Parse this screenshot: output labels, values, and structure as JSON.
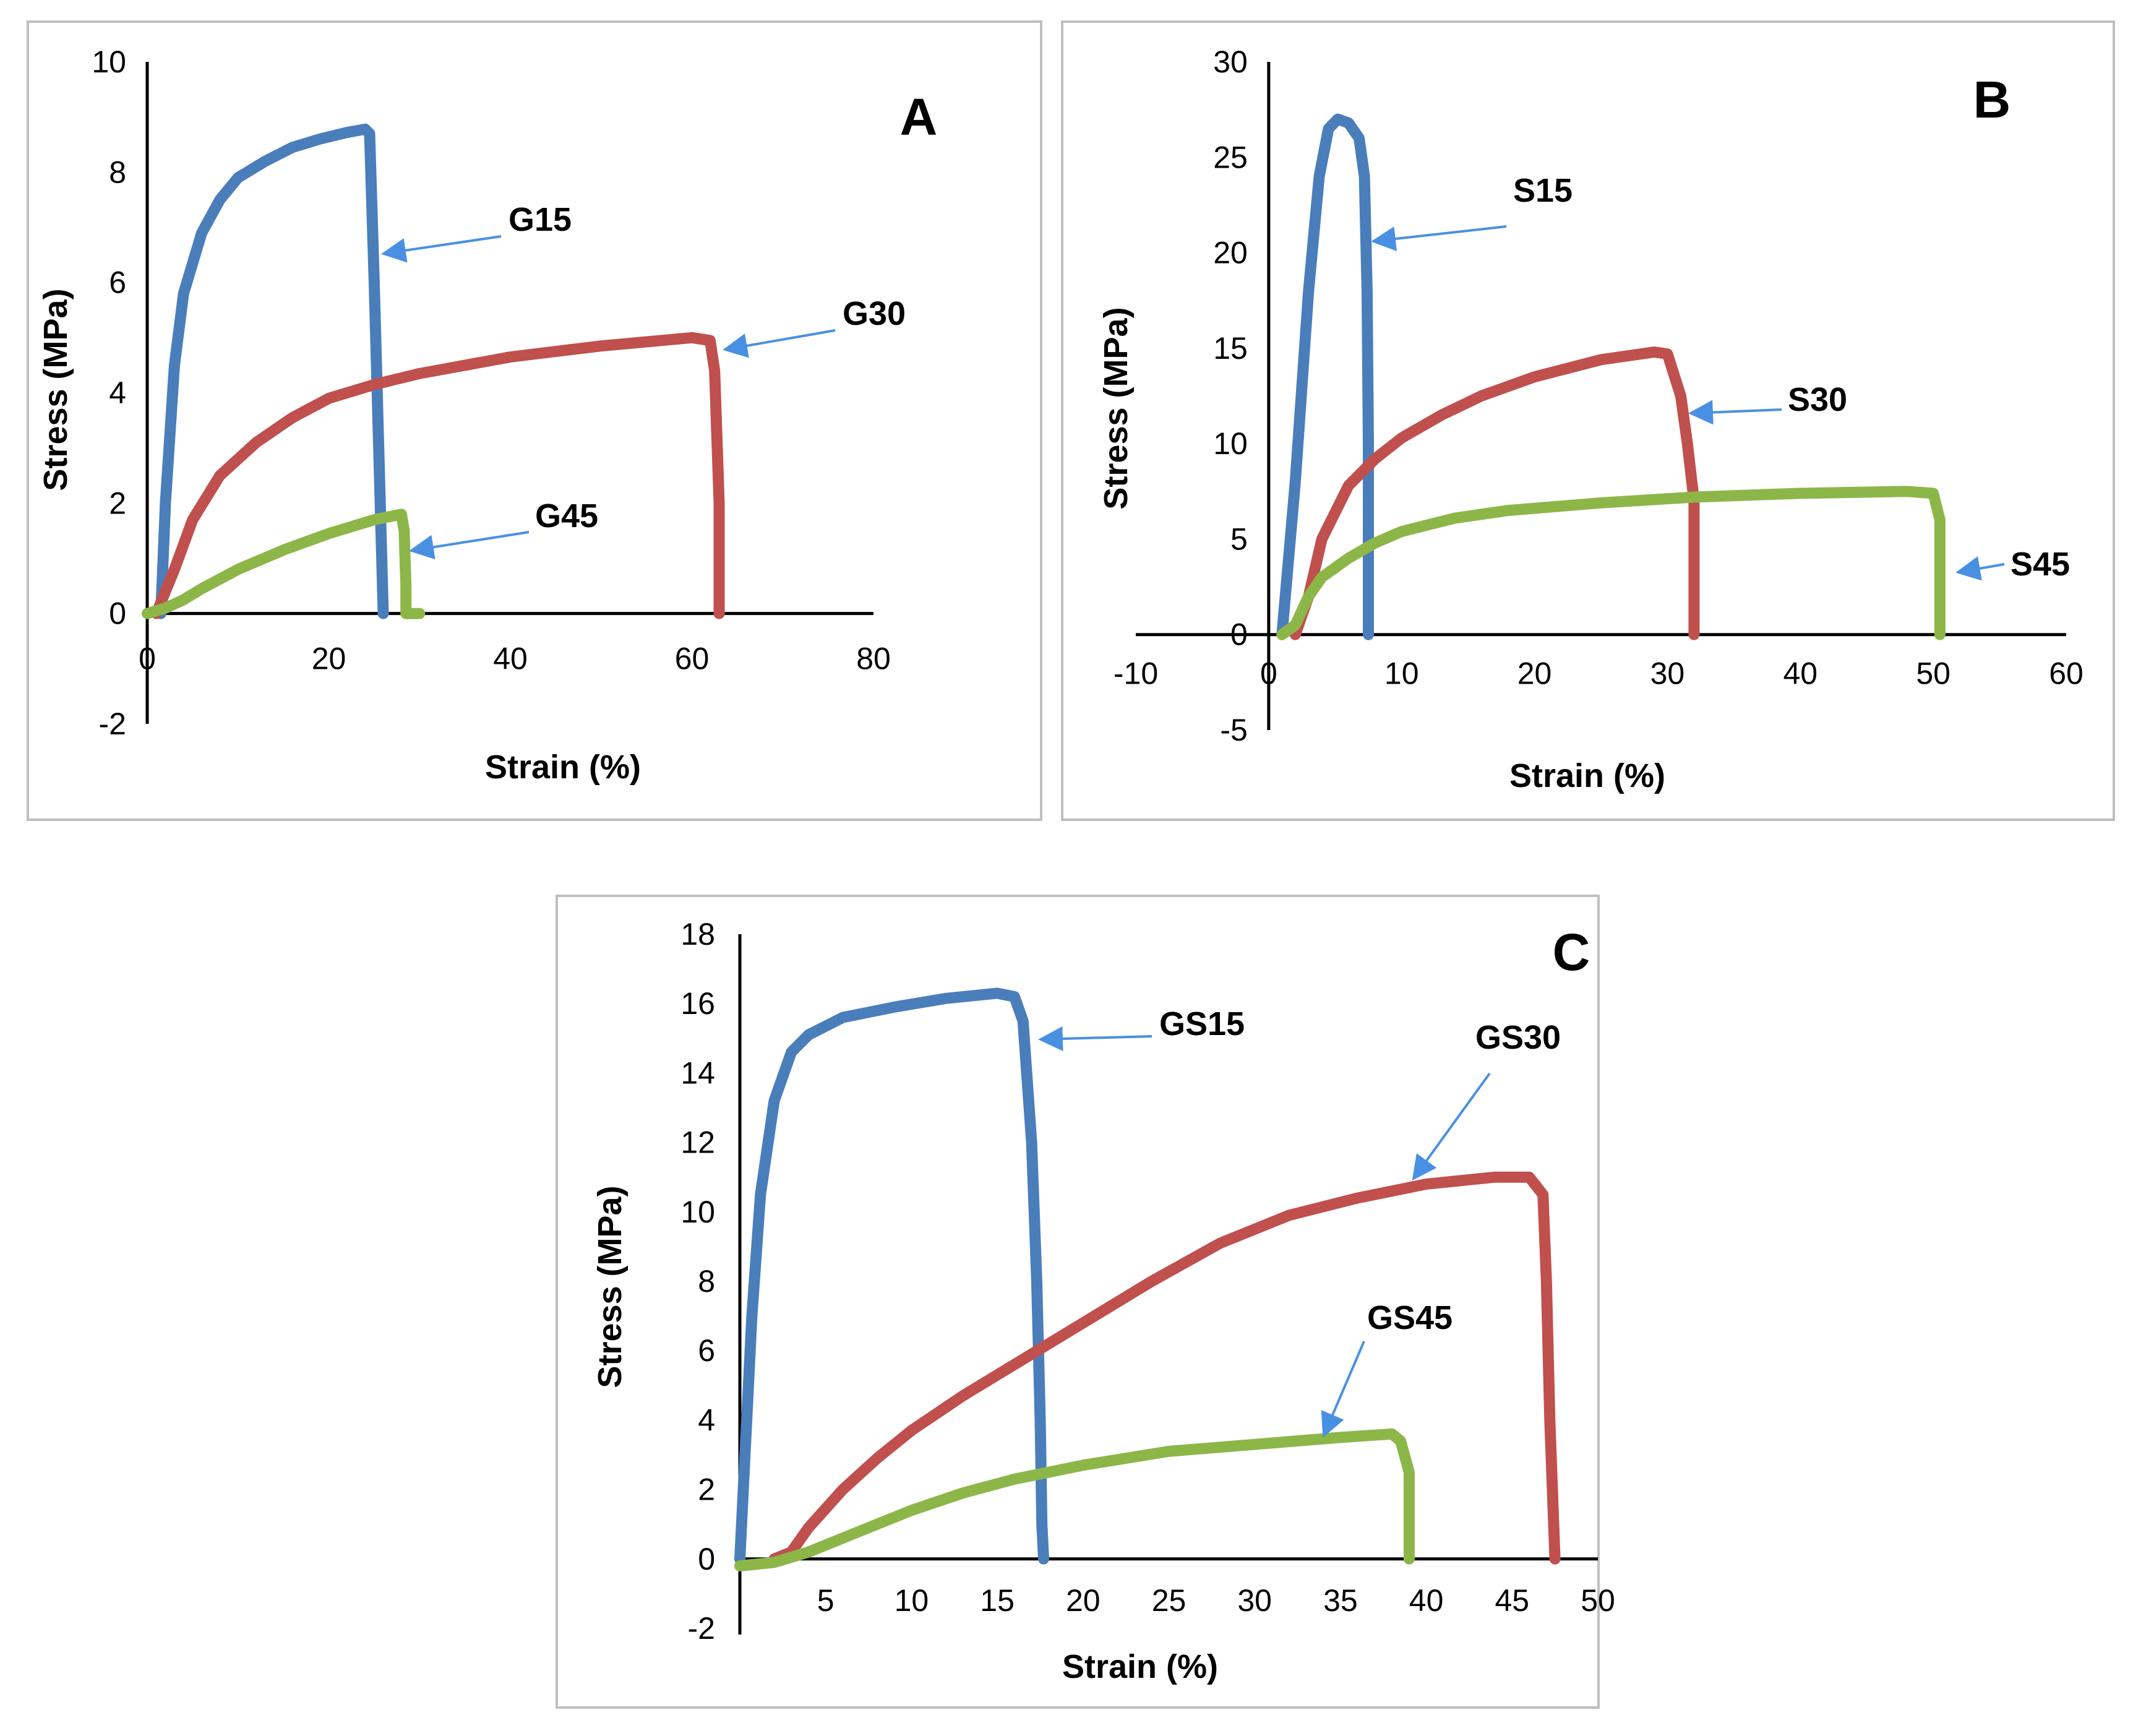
{
  "colors": {
    "blue": "#4a7ebb",
    "red": "#c0504d",
    "green": "#8db649",
    "arrow": "#4a90e2",
    "frame": "#bfbfbf"
  },
  "chart_data": [
    {
      "type": "line",
      "panel": "A",
      "xlabel": "Strain (%)",
      "ylabel": "Stress (MPa)",
      "xlim": [
        0,
        80
      ],
      "ylim": [
        -2,
        10
      ],
      "xticks": [
        0,
        20,
        40,
        60,
        80
      ],
      "yticks": [
        -2,
        0,
        2,
        4,
        6,
        8,
        10
      ],
      "series": [
        {
          "name": "G15",
          "color": "blue",
          "x": [
            1.5,
            2,
            3,
            4,
            6,
            8,
            10,
            13,
            16,
            19,
            22,
            24,
            24.5,
            25,
            25.5,
            26
          ],
          "y": [
            0,
            2,
            4.5,
            5.8,
            6.9,
            7.5,
            7.9,
            8.2,
            8.45,
            8.6,
            8.72,
            8.78,
            8.7,
            6,
            3,
            0
          ]
        },
        {
          "name": "G30",
          "color": "red",
          "x": [
            1,
            3,
            5,
            8,
            12,
            16,
            20,
            25,
            30,
            40,
            50,
            60,
            62,
            62.5,
            63,
            63
          ],
          "y": [
            0,
            0.8,
            1.7,
            2.5,
            3.1,
            3.55,
            3.9,
            4.15,
            4.35,
            4.65,
            4.85,
            5.0,
            4.95,
            4.4,
            2.0,
            0
          ]
        },
        {
          "name": "G45",
          "color": "green",
          "x": [
            0,
            2,
            4,
            6,
            10,
            15,
            20,
            25,
            28,
            28.3,
            28.5,
            28.5,
            30
          ],
          "y": [
            0,
            0.1,
            0.25,
            0.45,
            0.8,
            1.15,
            1.45,
            1.7,
            1.8,
            1.5,
            0.5,
            0,
            0
          ]
        }
      ],
      "labels": [
        "G15",
        "G30",
        "G45"
      ]
    },
    {
      "type": "line",
      "panel": "B",
      "xlabel": "Strain (%)",
      "ylabel": "Stress (MPa)",
      "xlim": [
        -10,
        60
      ],
      "ylim": [
        -5,
        30
      ],
      "xticks": [
        -10,
        0,
        10,
        20,
        30,
        40,
        50,
        60
      ],
      "yticks": [
        -5,
        0,
        5,
        10,
        15,
        20,
        25,
        30
      ],
      "series": [
        {
          "name": "S15",
          "color": "blue",
          "x": [
            1,
            2,
            3,
            3.8,
            4.5,
            5.2,
            6,
            6.8,
            7.2,
            7.4,
            7.5,
            7.5,
            7.5
          ],
          "y": [
            0,
            8,
            18,
            24,
            26.5,
            27.0,
            26.8,
            26.0,
            24,
            18,
            10,
            3,
            0
          ]
        },
        {
          "name": "S30",
          "color": "red",
          "x": [
            2,
            3,
            4,
            6,
            8,
            10,
            13,
            16,
            20,
            25,
            29,
            30,
            31,
            31.5,
            32,
            32,
            32
          ],
          "y": [
            0,
            2,
            5,
            7.8,
            9.2,
            10.3,
            11.5,
            12.5,
            13.5,
            14.4,
            14.8,
            14.7,
            12.5,
            10,
            7,
            3,
            0
          ]
        },
        {
          "name": "S45",
          "color": "green",
          "x": [
            1,
            2,
            3,
            4,
            6,
            8,
            10,
            14,
            18,
            25,
            32,
            40,
            48,
            50,
            50.5,
            50.5,
            50.5
          ],
          "y": [
            0,
            0.5,
            2,
            3,
            4,
            4.8,
            5.4,
            6.1,
            6.5,
            6.9,
            7.2,
            7.4,
            7.5,
            7.4,
            6,
            2,
            0
          ]
        }
      ],
      "labels": [
        "S15",
        "S30",
        "S45"
      ]
    },
    {
      "type": "line",
      "panel": "C",
      "xlabel": "Strain (%)",
      "ylabel": "Stress (MPa)",
      "xlim": [
        0,
        50
      ],
      "ylim": [
        -2,
        18
      ],
      "xticks": [
        5,
        10,
        15,
        20,
        25,
        30,
        35,
        40,
        45,
        50
      ],
      "yticks": [
        -2,
        0,
        2,
        4,
        6,
        8,
        10,
        12,
        14,
        16,
        18
      ],
      "series": [
        {
          "name": "GS15",
          "color": "blue",
          "x": [
            0,
            0.3,
            0.7,
            1.2,
            2,
            3,
            4,
            6,
            9,
            12,
            15,
            16,
            16.5,
            17,
            17.3,
            17.5,
            17.6,
            17.7
          ],
          "y": [
            0,
            3,
            7,
            10.5,
            13.2,
            14.6,
            15.1,
            15.6,
            15.9,
            16.15,
            16.3,
            16.2,
            15.5,
            12,
            8,
            4,
            1,
            0
          ]
        },
        {
          "name": "GS30",
          "color": "red",
          "x": [
            2,
            3,
            4,
            6,
            8,
            10,
            13,
            16,
            20,
            24,
            28,
            32,
            36,
            40,
            44,
            46,
            46.8,
            47,
            47.2,
            47.5
          ],
          "y": [
            0,
            0.2,
            0.9,
            2.0,
            2.9,
            3.7,
            4.7,
            5.6,
            6.8,
            8.0,
            9.1,
            9.9,
            10.4,
            10.8,
            11.0,
            11.0,
            10.5,
            8,
            4,
            0
          ]
        },
        {
          "name": "GS45",
          "color": "green",
          "x": [
            0,
            2,
            4,
            6,
            8,
            10,
            13,
            16,
            20,
            25,
            30,
            35,
            38,
            38.5,
            39,
            39,
            39
          ],
          "y": [
            -0.2,
            -0.1,
            0.2,
            0.6,
            1.0,
            1.4,
            1.9,
            2.3,
            2.7,
            3.1,
            3.3,
            3.5,
            3.6,
            3.4,
            2.5,
            1,
            0
          ]
        }
      ],
      "labels": [
        "GS15",
        "GS30",
        "GS45"
      ]
    }
  ]
}
